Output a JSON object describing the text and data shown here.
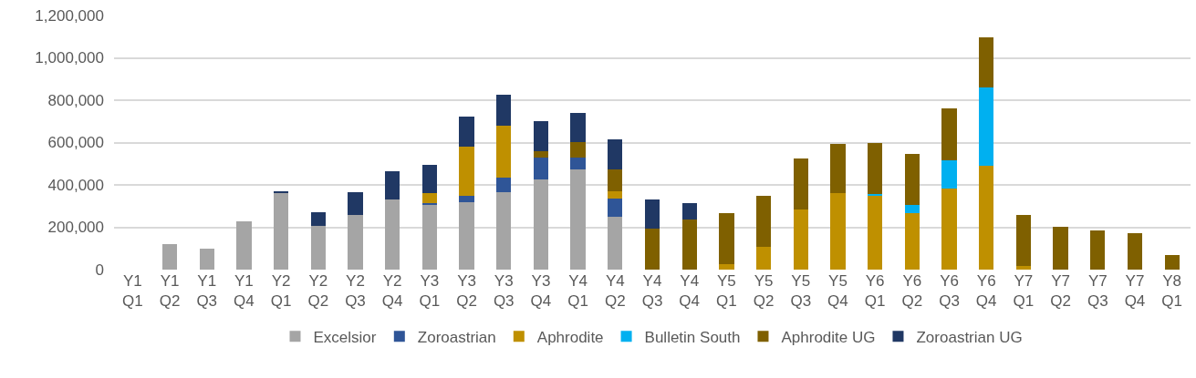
{
  "chart_data": {
    "type": "bar",
    "stacked": true,
    "categories": [
      "Y1 Q1",
      "Y1 Q2",
      "Y1 Q3",
      "Y1 Q4",
      "Y2 Q1",
      "Y2 Q2",
      "Y2 Q3",
      "Y2 Q4",
      "Y3 Q1",
      "Y3 Q2",
      "Y3 Q3",
      "Y3 Q4",
      "Y4 Q1",
      "Y4 Q2",
      "Y4 Q3",
      "Y4 Q4",
      "Y5 Q1",
      "Y5 Q2",
      "Y5 Q3",
      "Y5 Q4",
      "Y6 Q1",
      "Y6 Q2",
      "Y6 Q3",
      "Y6 Q4",
      "Y7 Q1",
      "Y7 Q2",
      "Y7 Q3",
      "Y7 Q4",
      "Y8 Q1"
    ],
    "series": [
      {
        "name": "Excelsior",
        "color": "#a5a5a5",
        "values": [
          null,
          120000,
          100000,
          228000,
          362000,
          205000,
          258000,
          332000,
          308000,
          320000,
          367000,
          427000,
          474000,
          251000,
          null,
          null,
          null,
          null,
          null,
          null,
          null,
          null,
          null,
          null,
          null,
          null,
          null,
          null,
          null
        ]
      },
      {
        "name": "Zoroastrian",
        "color": "#2f5597",
        "values": [
          null,
          null,
          null,
          null,
          null,
          null,
          null,
          null,
          5000,
          30000,
          69000,
          102000,
          56000,
          86000,
          null,
          null,
          null,
          null,
          null,
          null,
          null,
          null,
          null,
          null,
          null,
          null,
          null,
          null,
          null
        ]
      },
      {
        "name": "Aphrodite",
        "color": "#bf9000",
        "values": [
          null,
          null,
          null,
          null,
          null,
          null,
          null,
          null,
          48000,
          231000,
          245000,
          null,
          null,
          33000,
          null,
          null,
          26000,
          108000,
          282000,
          360000,
          347000,
          267000,
          384000,
          491000,
          17000,
          null,
          null,
          null,
          null
        ]
      },
      {
        "name": "Bulletin South",
        "color": "#00b0f0",
        "values": [
          null,
          null,
          null,
          null,
          null,
          null,
          null,
          null,
          null,
          null,
          null,
          null,
          null,
          null,
          null,
          null,
          null,
          null,
          null,
          null,
          10000,
          37000,
          134000,
          369000,
          null,
          null,
          null,
          null,
          null
        ]
      },
      {
        "name": "Aphrodite UG",
        "color": "#7f6000",
        "values": [
          null,
          null,
          null,
          null,
          null,
          null,
          null,
          null,
          null,
          null,
          null,
          29000,
          73000,
          102000,
          194000,
          235000,
          242000,
          239000,
          243000,
          235000,
          241000,
          241000,
          242000,
          238000,
          241000,
          202000,
          185000,
          171000,
          70000
        ]
      },
      {
        "name": "Zoroastrian UG",
        "color": "#203864",
        "values": [
          null,
          null,
          null,
          null,
          8000,
          67000,
          107000,
          133000,
          135000,
          143000,
          143000,
          143000,
          138000,
          143000,
          137000,
          79000,
          null,
          null,
          null,
          null,
          null,
          null,
          null,
          null,
          null,
          null,
          null,
          null,
          null
        ]
      }
    ],
    "ylim": [
      0,
      1200000
    ],
    "yticks": [
      {
        "value": 0,
        "label": "0"
      },
      {
        "value": 200000,
        "label": "200,000"
      },
      {
        "value": 400000,
        "label": "400,000"
      },
      {
        "value": 600000,
        "label": "600,000"
      },
      {
        "value": 800000,
        "label": "800,000"
      },
      {
        "value": 1000000,
        "label": "1,000,000"
      },
      {
        "value": 1200000,
        "label": "1,200,000"
      }
    ],
    "grid": "y",
    "legend": "bottom"
  }
}
